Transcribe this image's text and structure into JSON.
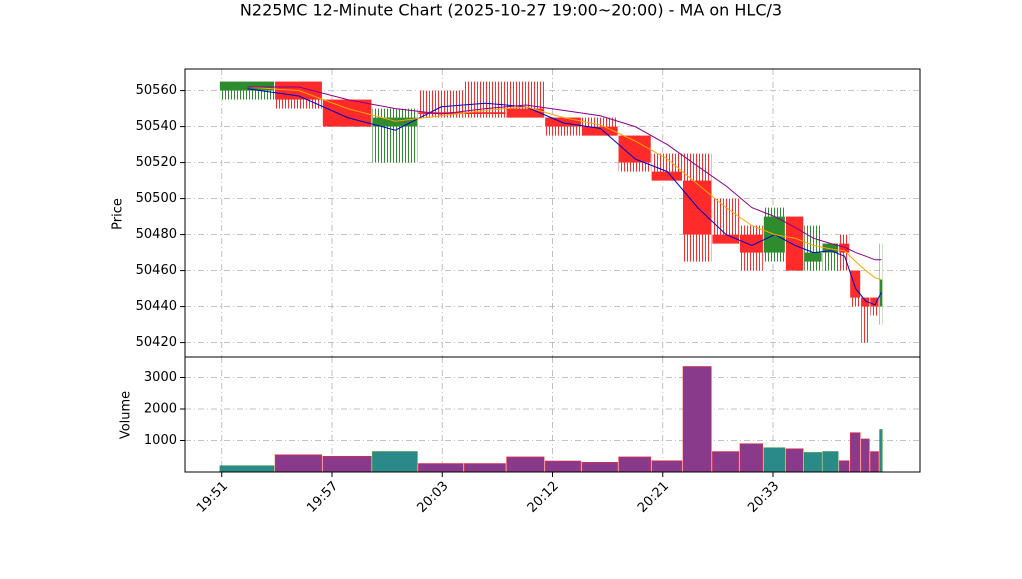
{
  "chart_data": {
    "type": "ohlc-volume",
    "title": "N225MC 12-Minute Chart (2025-10-27 19:00~20:00) - MA on HLC/3",
    "ylabel": "Price",
    "y2label": "Volume",
    "bins": [
      -0.1,
      2.9,
      5.5,
      8.2,
      10.7,
      13.2,
      15.5,
      17.6,
      19.6,
      21.6,
      23.4,
      25.1,
      26.7,
      28.2,
      29.5,
      30.7,
      31.7,
      32.7,
      33.6,
      34.2,
      34.8,
      35.3,
      35.8,
      36.0
    ],
    "open": [
      50560,
      50565,
      50555,
      50540,
      50548,
      50548,
      50550,
      50545,
      50540,
      50535,
      50515,
      50510,
      50480,
      50480,
      50470,
      50490,
      50465,
      50470,
      50475,
      50460,
      50445,
      50445,
      50440
    ],
    "close": [
      50565,
      50555,
      50540,
      50545,
      50547,
      50547,
      50545,
      50540,
      50535,
      50520,
      50510,
      50480,
      50475,
      50470,
      50490,
      50460,
      50470,
      50475,
      50470,
      50445,
      50440,
      50440,
      50455
    ],
    "high": [
      50565,
      50565,
      50555,
      50550,
      50560,
      50565,
      50565,
      50545,
      50545,
      50535,
      50525,
      50525,
      50500,
      50485,
      50495,
      50490,
      50485,
      50475,
      50480,
      50460,
      50445,
      50445,
      50475
    ],
    "low": [
      50555,
      50550,
      50540,
      50520,
      50545,
      50545,
      50545,
      50535,
      50535,
      50515,
      50510,
      50465,
      50475,
      50460,
      50465,
      50460,
      50460,
      50460,
      50460,
      50440,
      50420,
      50435,
      50430
    ],
    "volume": [
      200,
      550,
      500,
      650,
      270,
      270,
      480,
      350,
      310,
      480,
      360,
      3350,
      650,
      900,
      770,
      740,
      620,
      650,
      360,
      1250,
      1050,
      650,
      1350
    ],
    "up_color": "#2e8b2e",
    "down_color": "#ff2a2a",
    "volume_up_color": "#2a8a8a",
    "volume_down_color": "#8a3a8a",
    "lines": [
      {
        "color": "#0000cc",
        "values": [
          50561,
          50557,
          50545,
          50538,
          50551,
          50553,
          50551,
          50542,
          50539,
          50522,
          50515,
          50495,
          50480,
          50474,
          50480,
          50474,
          50470,
          50471,
          50468,
          50450,
          50443,
          50441,
          50448
        ]
      },
      {
        "color": "#ffa500",
        "values": [
          50562,
          50560,
          50550,
          50543,
          50546,
          50549,
          50551,
          50545,
          50541,
          50532,
          50522,
          50508,
          50495,
          50485,
          50480,
          50478,
          50474,
          50472,
          50471,
          50465,
          50460,
          50456,
          50455
        ]
      },
      {
        "color": "#8b008b",
        "values": [
          50562,
          50562,
          50555,
          50550,
          50547,
          50550,
          50552,
          50549,
          50546,
          50540,
          50530,
          50518,
          50507,
          50495,
          50490,
          50484,
          50478,
          50475,
          50473,
          50470,
          50468,
          50466,
          50466
        ]
      }
    ],
    "xlim": [
      -2,
      38
    ],
    "xticks": [
      {
        "value": 0,
        "label": "19:51"
      },
      {
        "value": 6,
        "label": "19:57"
      },
      {
        "value": 12,
        "label": "20:03"
      },
      {
        "value": 18,
        "label": "20:12"
      },
      {
        "value": 24,
        "label": "20:21"
      },
      {
        "value": 30,
        "label": "20:33"
      }
    ],
    "ylim": [
      50412,
      50572
    ],
    "yticks": [
      50420,
      50440,
      50460,
      50480,
      50500,
      50520,
      50540,
      50560
    ],
    "y2lim": [
      0,
      3650
    ],
    "y2ticks": [
      1000,
      2000,
      3000
    ],
    "grid": true
  }
}
